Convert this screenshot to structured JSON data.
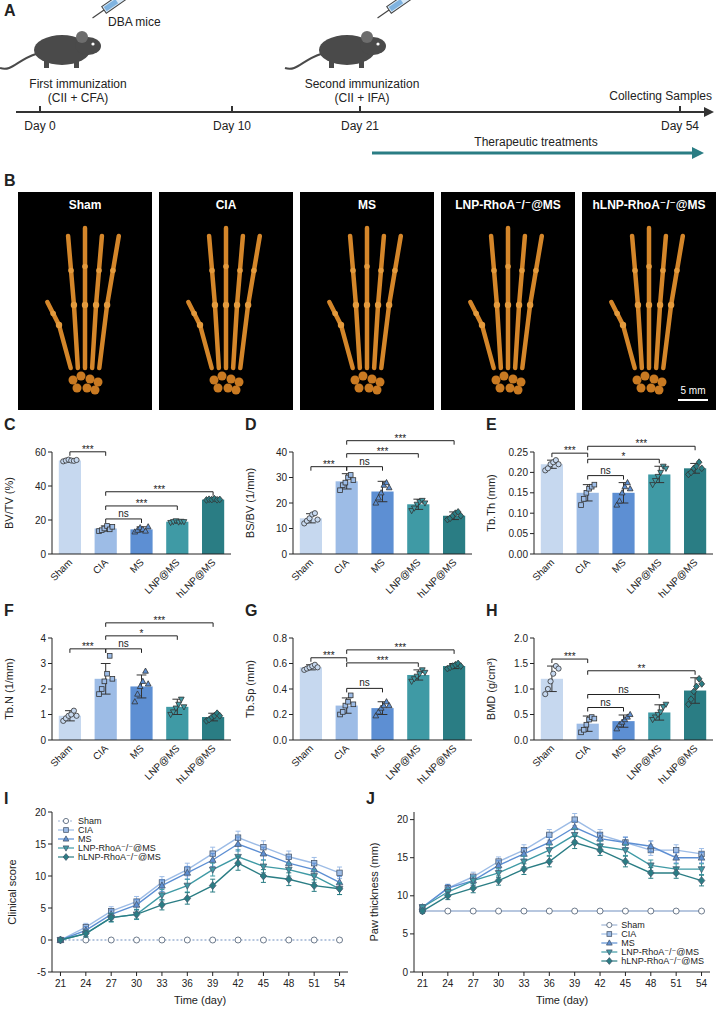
{
  "panel_a": {
    "letter": "A",
    "subject": "DBA mice",
    "days": [
      "Day 0",
      "Day 10",
      "Day 21",
      "Day 54"
    ],
    "events": [
      {
        "title": "First immunization",
        "detail": "(CII + CFA)"
      },
      {
        "title": "Second immunization",
        "detail": "(CII + IFA)"
      },
      {
        "title": "Collecting Samples"
      }
    ],
    "treatment": "Therapeutic treatments"
  },
  "panel_b": {
    "letter": "B",
    "images": [
      {
        "label": "Sham"
      },
      {
        "label": "CIA"
      },
      {
        "label": "MS"
      },
      {
        "label": "LNP-RhoA⁻/⁻@MS"
      },
      {
        "label": "hLNP-RhoA⁻/⁻@MS"
      }
    ],
    "scale_bar": "5 mm"
  },
  "chart_data": [
    {
      "letter": "C",
      "type": "bar",
      "y_label": "BV/TV (%)",
      "categories": [
        "Sham",
        "CIA",
        "MS",
        "LNP@MS",
        "hLNP@MS"
      ],
      "colors": [
        "#c6d8ef",
        "#9dbce6",
        "#5d8fd3",
        "#3f9aa5",
        "#2a7d84"
      ],
      "marker": [
        "circle",
        "square",
        "triangle",
        "triangle-down",
        "diamond"
      ],
      "values": [
        55,
        15,
        14.5,
        19,
        32
      ],
      "errors": [
        1,
        1.5,
        1.5,
        0.6,
        0.5
      ],
      "points": [
        [
          54.5,
          55,
          55.5,
          55,
          54.8,
          55.3
        ],
        [
          13.5,
          14,
          15,
          16.5,
          14.5,
          16
        ],
        [
          13,
          14,
          15.5,
          14.5,
          13.5,
          16
        ],
        [
          18.5,
          19,
          19.5,
          18.8,
          19.2,
          19
        ],
        [
          31.8,
          32.2,
          32,
          32.5,
          31.9,
          32.1
        ]
      ],
      "ylim": [
        0,
        60
      ],
      "yticks": [
        0,
        20,
        40,
        60
      ],
      "annotations": [
        {
          "between": [
            "Sham",
            "CIA"
          ],
          "label": "***"
        },
        {
          "between": [
            "CIA",
            "MS"
          ],
          "label": "ns"
        },
        {
          "between": [
            "CIA",
            "LNP@MS"
          ],
          "label": "***"
        },
        {
          "between": [
            "CIA",
            "hLNP@MS"
          ],
          "label": "***"
        }
      ]
    },
    {
      "letter": "D",
      "type": "bar",
      "y_label": "BS/BV (1/mm)",
      "categories": [
        "Sham",
        "CIA",
        "MS",
        "LNP@MS",
        "hLNP@MS"
      ],
      "colors": [
        "#c6d8ef",
        "#9dbce6",
        "#5d8fd3",
        "#3f9aa5",
        "#2a7d84"
      ],
      "marker": [
        "circle",
        "square",
        "triangle",
        "triangle-down",
        "diamond"
      ],
      "values": [
        14,
        28.5,
        24.5,
        19.5,
        15
      ],
      "errors": [
        1.8,
        3,
        4,
        2,
        1.5
      ],
      "points": [
        [
          12,
          13,
          14,
          15.5,
          16,
          13.5
        ],
        [
          25,
          27,
          28,
          30,
          31,
          29
        ],
        [
          20,
          22,
          24,
          27,
          28,
          26
        ],
        [
          17,
          18,
          19.5,
          20.5,
          21,
          20
        ],
        [
          13.5,
          14,
          15,
          16,
          16.5,
          15
        ]
      ],
      "ylim": [
        0,
        40
      ],
      "yticks": [
        0,
        10,
        20,
        30,
        40
      ],
      "annotations": [
        {
          "between": [
            "Sham",
            "CIA"
          ],
          "label": "***"
        },
        {
          "between": [
            "CIA",
            "MS"
          ],
          "label": "ns"
        },
        {
          "between": [
            "CIA",
            "LNP@MS"
          ],
          "label": "***"
        },
        {
          "between": [
            "CIA",
            "hLNP@MS"
          ],
          "label": "***"
        }
      ]
    },
    {
      "letter": "E",
      "type": "bar",
      "y_label": "Tb.Th (mm)",
      "categories": [
        "Sham",
        "CIA",
        "MS",
        "LNP@MS",
        "hLNP@MS"
      ],
      "colors": [
        "#c6d8ef",
        "#9dbce6",
        "#5d8fd3",
        "#3f9aa5",
        "#2a7d84"
      ],
      "marker": [
        "circle",
        "square",
        "triangle",
        "triangle-down",
        "diamond"
      ],
      "values": [
        0.22,
        0.15,
        0.15,
        0.195,
        0.21
      ],
      "errors": [
        0.01,
        0.02,
        0.025,
        0.02,
        0.012
      ],
      "points": [
        [
          0.205,
          0.21,
          0.22,
          0.225,
          0.23,
          0.22
        ],
        [
          0.12,
          0.135,
          0.15,
          0.16,
          0.165,
          0.17
        ],
        [
          0.12,
          0.13,
          0.15,
          0.165,
          0.175,
          0.16
        ],
        [
          0.17,
          0.18,
          0.19,
          0.2,
          0.215,
          0.21
        ],
        [
          0.195,
          0.2,
          0.21,
          0.215,
          0.225,
          0.21
        ]
      ],
      "ylim": [
        0,
        0.25
      ],
      "yticks": [
        {
          "value": 0,
          "label": "0.00"
        },
        {
          "value": 0.05,
          "label": "0.05"
        },
        {
          "value": 0.1,
          "label": "0.10"
        },
        {
          "value": 0.15,
          "label": "0.15"
        },
        {
          "value": 0.2,
          "label": "0.20"
        },
        {
          "value": 0.25,
          "label": "0.25"
        }
      ],
      "annotations": [
        {
          "between": [
            "Sham",
            "CIA"
          ],
          "label": "***"
        },
        {
          "between": [
            "CIA",
            "MS"
          ],
          "label": "ns"
        },
        {
          "between": [
            "CIA",
            "LNP@MS"
          ],
          "label": "*"
        },
        {
          "between": [
            "CIA",
            "hLNP@MS"
          ],
          "label": "***"
        }
      ]
    },
    {
      "letter": "F",
      "type": "bar",
      "y_label": "Tb.N (1/mm)",
      "categories": [
        "Sham",
        "CIA",
        "MS",
        "LNP@MS",
        "hLNP@MS"
      ],
      "colors": [
        "#c6d8ef",
        "#9dbce6",
        "#5d8fd3",
        "#3f9aa5",
        "#2a7d84"
      ],
      "marker": [
        "circle",
        "square",
        "triangle",
        "triangle-down",
        "diamond"
      ],
      "values": [
        0.95,
        2.4,
        2.1,
        1.3,
        0.9
      ],
      "errors": [
        0.2,
        0.6,
        0.45,
        0.3,
        0.15
      ],
      "points": [
        [
          0.75,
          0.85,
          0.95,
          1.0,
          1.15,
          0.95
        ],
        [
          1.8,
          2.0,
          2.3,
          2.6,
          3.3,
          2.4
        ],
        [
          1.5,
          1.8,
          2.1,
          2.3,
          2.7,
          2.2
        ],
        [
          1.0,
          1.1,
          1.25,
          1.4,
          1.6,
          1.3
        ],
        [
          0.75,
          0.8,
          0.9,
          0.95,
          1.05,
          0.95
        ]
      ],
      "ylim": [
        0,
        4
      ],
      "yticks": [
        0,
        1,
        2,
        3,
        4
      ],
      "annotations": [
        {
          "between": [
            "Sham",
            "CIA"
          ],
          "label": "***"
        },
        {
          "between": [
            "CIA",
            "MS"
          ],
          "label": "ns"
        },
        {
          "between": [
            "CIA",
            "LNP@MS"
          ],
          "label": "*"
        },
        {
          "between": [
            "CIA",
            "hLNP@MS"
          ],
          "label": "***"
        }
      ]
    },
    {
      "letter": "G",
      "type": "bar",
      "y_label": "Tb.Sp (mm)",
      "categories": [
        "Sham",
        "CIA",
        "MS",
        "LNP@MS",
        "hLNP@MS"
      ],
      "colors": [
        "#c6d8ef",
        "#9dbce6",
        "#5d8fd3",
        "#3f9aa5",
        "#2a7d84"
      ],
      "marker": [
        "circle",
        "square",
        "triangle",
        "triangle-down",
        "diamond"
      ],
      "values": [
        0.57,
        0.27,
        0.25,
        0.51,
        0.58
      ],
      "errors": [
        0.02,
        0.06,
        0.05,
        0.04,
        0.02
      ],
      "points": [
        [
          0.55,
          0.56,
          0.57,
          0.58,
          0.59,
          0.57
        ],
        [
          0.2,
          0.22,
          0.27,
          0.3,
          0.35,
          0.28
        ],
        [
          0.19,
          0.22,
          0.25,
          0.27,
          0.3,
          0.27
        ],
        [
          0.46,
          0.48,
          0.5,
          0.52,
          0.55,
          0.53
        ],
        [
          0.56,
          0.57,
          0.58,
          0.59,
          0.6,
          0.58
        ]
      ],
      "ylim": [
        0,
        0.8
      ],
      "yticks": [
        {
          "value": 0,
          "label": "0.0"
        },
        0.2,
        0.4,
        0.6,
        0.8
      ],
      "annotations": [
        {
          "between": [
            "Sham",
            "CIA"
          ],
          "label": "***"
        },
        {
          "between": [
            "CIA",
            "MS"
          ],
          "label": "ns"
        },
        {
          "between": [
            "CIA",
            "LNP@MS"
          ],
          "label": "***"
        },
        {
          "between": [
            "CIA",
            "hLNP@MS"
          ],
          "label": "***"
        }
      ]
    },
    {
      "letter": "H",
      "type": "bar",
      "y_label": "BMD (g/cm³)",
      "categories": [
        "Sham",
        "CIA",
        "MS",
        "LNP@MS",
        "hLNP@MS"
      ],
      "colors": [
        "#c6d8ef",
        "#9dbce6",
        "#5d8fd3",
        "#3f9aa5",
        "#2a7d84"
      ],
      "marker": [
        "circle",
        "square",
        "triangle",
        "triangle-down",
        "diamond"
      ],
      "values": [
        1.2,
        0.32,
        0.37,
        0.54,
        0.97
      ],
      "errors": [
        0.25,
        0.15,
        0.12,
        0.15,
        0.25
      ],
      "points": [
        [
          0.9,
          1.0,
          1.15,
          1.3,
          1.45,
          1.4
        ],
        [
          0.15,
          0.2,
          0.3,
          0.4,
          0.45,
          0.42
        ],
        [
          0.22,
          0.3,
          0.35,
          0.4,
          0.45,
          0.5
        ],
        [
          0.4,
          0.45,
          0.5,
          0.55,
          0.65,
          0.7
        ],
        [
          0.7,
          0.8,
          0.95,
          1.05,
          1.2,
          1.1
        ]
      ],
      "ylim": [
        0,
        2
      ],
      "yticks": [
        {
          "value": 0,
          "label": "0.0"
        },
        0.5,
        {
          "value": 1,
          "label": "1.0"
        },
        1.5,
        {
          "value": 2,
          "label": "2.0"
        }
      ],
      "annotations": [
        {
          "between": [
            "Sham",
            "CIA"
          ],
          "label": "***"
        },
        {
          "between": [
            "CIA",
            "MS"
          ],
          "label": "ns"
        },
        {
          "between": [
            "CIA",
            "LNP@MS"
          ],
          "label": "ns"
        },
        {
          "between": [
            "CIA",
            "hLNP@MS"
          ],
          "label": "**"
        }
      ]
    },
    {
      "letter": "I",
      "type": "line",
      "x_label": "Time (day)",
      "y_label": "Clinical score",
      "x": [
        21,
        24,
        27,
        30,
        33,
        36,
        39,
        42,
        45,
        48,
        51,
        54
      ],
      "xlim": [
        20,
        55
      ],
      "xticks": [
        21,
        24,
        27,
        30,
        33,
        36,
        39,
        42,
        45,
        48,
        51,
        54
      ],
      "ylim": [
        -5,
        20
      ],
      "yticks": [
        -5,
        0,
        5,
        10,
        15,
        20
      ],
      "legend": "upper left",
      "series": [
        {
          "name": "Sham",
          "color": "#9fb4d4",
          "marker": "open-circle",
          "line_style": "dotted",
          "values": [
            0,
            0,
            0,
            0,
            0,
            0,
            0,
            0,
            0,
            0,
            0,
            0
          ],
          "errors": [
            0,
            0,
            0,
            0,
            0,
            0,
            0,
            0,
            0,
            0,
            0,
            0
          ]
        },
        {
          "name": "CIA",
          "color": "#9dbce6",
          "marker": "square",
          "line_style": "solid",
          "values": [
            0,
            2,
            4.5,
            6,
            9,
            11,
            13.5,
            16,
            14.5,
            13,
            12,
            10.5
          ],
          "errors": [
            0,
            0.6,
            0.7,
            0.8,
            0.9,
            1,
            1,
            1,
            1,
            0.9,
            0.9,
            0.9
          ]
        },
        {
          "name": "MS",
          "color": "#5d8fd3",
          "marker": "triangle",
          "line_style": "solid",
          "values": [
            0,
            1.5,
            4,
            5.5,
            8.5,
            10.5,
            12.5,
            15,
            13.5,
            12,
            11,
            9
          ],
          "errors": [
            0,
            0.6,
            0.7,
            0.8,
            0.9,
            1,
            1,
            1.1,
            1,
            1,
            1,
            0.9
          ]
        },
        {
          "name": "LNP-RhoA⁻/⁻@MS",
          "color": "#3f9aa5",
          "marker": "triangle-down",
          "line_style": "solid",
          "values": [
            0,
            1,
            3.5,
            4,
            7,
            8.5,
            11,
            13,
            11.5,
            11,
            10,
            8
          ],
          "errors": [
            0,
            0.5,
            0.7,
            0.8,
            0.9,
            1,
            1,
            1.1,
            1,
            1,
            1,
            0.9
          ]
        },
        {
          "name": "hLNP-RhoA⁻/⁻@MS",
          "color": "#2a7d84",
          "marker": "diamond",
          "line_style": "solid",
          "values": [
            0,
            1,
            3.5,
            4,
            5.5,
            6.5,
            8.5,
            12,
            10,
            9.5,
            8.5,
            8
          ],
          "errors": [
            0,
            0.5,
            0.6,
            0.7,
            0.8,
            0.9,
            1,
            1.1,
            1,
            1,
            0.9,
            0.9
          ]
        }
      ]
    },
    {
      "letter": "J",
      "type": "line",
      "x_label": "Time (day)",
      "y_label": "Paw thickness (mm)",
      "x": [
        21,
        24,
        27,
        30,
        33,
        36,
        39,
        42,
        45,
        48,
        51,
        54
      ],
      "xlim": [
        20,
        55
      ],
      "xticks": [
        21,
        24,
        27,
        30,
        33,
        36,
        39,
        42,
        45,
        48,
        51,
        54
      ],
      "ylim": [
        0,
        21
      ],
      "yticks": [
        0,
        5,
        10,
        15,
        20
      ],
      "legend": "lower right",
      "series": [
        {
          "name": "Sham",
          "color": "#9fb4d4",
          "marker": "open-circle",
          "line_style": "solid",
          "values": [
            8,
            8,
            8,
            8,
            8,
            8,
            8,
            8,
            8,
            8,
            8,
            8
          ],
          "errors": [
            0,
            0,
            0,
            0,
            0,
            0,
            0,
            0,
            0,
            0,
            0,
            0
          ]
        },
        {
          "name": "CIA",
          "color": "#9dbce6",
          "marker": "square",
          "line_style": "solid",
          "values": [
            8.5,
            11,
            12.5,
            14.5,
            16,
            18,
            20,
            18,
            17,
            16,
            16,
            15.5
          ],
          "errors": [
            0.3,
            0.5,
            0.6,
            0.6,
            0.7,
            0.7,
            0.8,
            0.7,
            0.7,
            0.7,
            0.7,
            0.7
          ]
        },
        {
          "name": "MS",
          "color": "#5d8fd3",
          "marker": "triangle",
          "line_style": "solid",
          "values": [
            8.5,
            11,
            12,
            14,
            15.5,
            17,
            19,
            17.5,
            17,
            16.5,
            15,
            15
          ],
          "errors": [
            0.3,
            0.5,
            0.6,
            0.6,
            0.7,
            0.7,
            0.8,
            0.7,
            0.7,
            0.7,
            0.7,
            0.7
          ]
        },
        {
          "name": "LNP-RhoA⁻/⁻@MS",
          "color": "#3f9aa5",
          "marker": "triangle-down",
          "line_style": "solid",
          "values": [
            8.5,
            10.5,
            12,
            13,
            14.5,
            16,
            18,
            16.5,
            16,
            14,
            13.5,
            13.5
          ],
          "errors": [
            0.3,
            0.5,
            0.6,
            0.6,
            0.7,
            0.7,
            0.8,
            0.7,
            0.7,
            0.7,
            0.7,
            0.7
          ]
        },
        {
          "name": "hLNP-RhoA⁻/⁻@MS",
          "color": "#2a7d84",
          "marker": "diamond",
          "line_style": "solid",
          "values": [
            8,
            10,
            11,
            12,
            13.5,
            14.5,
            17,
            16,
            14.5,
            13,
            13,
            12
          ],
          "errors": [
            0.3,
            0.5,
            0.6,
            0.6,
            0.7,
            0.7,
            0.8,
            0.7,
            0.7,
            0.7,
            0.7,
            0.7
          ]
        }
      ]
    }
  ]
}
